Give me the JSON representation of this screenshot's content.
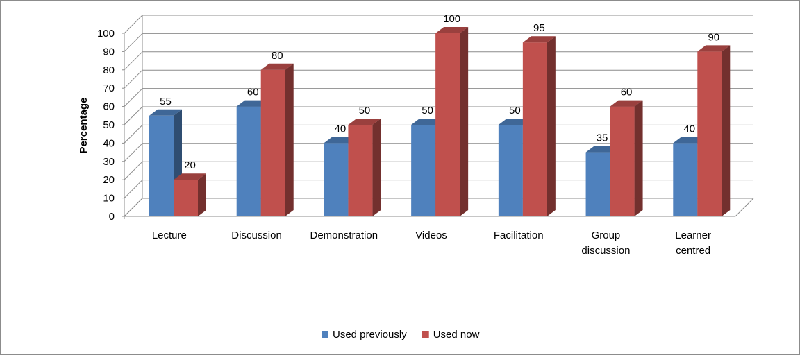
{
  "chart_data": {
    "type": "bar",
    "title": "",
    "xlabel": "",
    "ylabel": "Percentage",
    "categories": [
      [
        "Lecture"
      ],
      [
        "Discussion"
      ],
      [
        "Demonstration"
      ],
      [
        "Videos"
      ],
      [
        "Facilitation"
      ],
      [
        "Group",
        "discussion"
      ],
      [
        "Learner",
        "centred"
      ]
    ],
    "series": [
      {
        "name": "Used previously",
        "values": [
          55,
          60,
          40,
          50,
          50,
          35,
          40
        ],
        "color": "#4f81bd"
      },
      {
        "name": "Used now",
        "values": [
          20,
          80,
          50,
          100,
          95,
          60,
          90
        ],
        "color": "#c0504d"
      }
    ],
    "ylim": [
      0,
      100
    ],
    "yticks": [
      0,
      10,
      20,
      30,
      40,
      50,
      60,
      70,
      80,
      90,
      100
    ],
    "grid": true,
    "legend_position": "bottom",
    "style": "3d-clustered-column"
  }
}
